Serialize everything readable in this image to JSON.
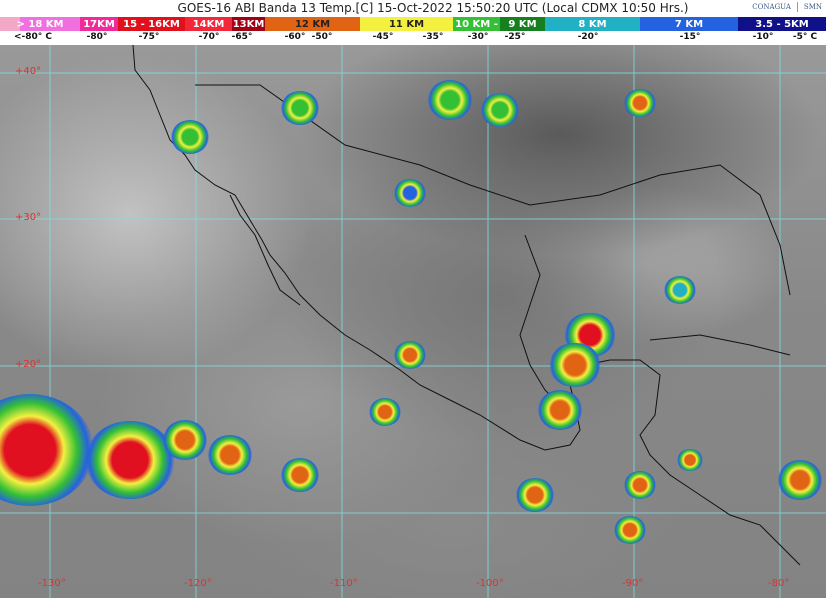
{
  "title": "GOES-16 ABI Banda 13 Temp.[C] 15-Oct-2022 15:50:20 UTC (Local CDMX  10:50 Hrs.)",
  "logos": [
    "CONAGUA",
    "SMN"
  ],
  "legend": {
    "segments": [
      {
        "label": "> 18 KM",
        "color": "#f070e0"
      },
      {
        "label": "17KM",
        "color": "#f02a9a"
      },
      {
        "label": "15 - 16KM",
        "color": "#e0101c"
      },
      {
        "label": "14KM",
        "color": "#f2283a"
      },
      {
        "label": "13KM",
        "color": "#a00014"
      },
      {
        "label": "12 KM",
        "color": "#e06414"
      },
      {
        "label": "11 KM",
        "color": "#f4f040"
      },
      {
        "label": "10 KM -",
        "color": "#34c034"
      },
      {
        "label": "9 KM",
        "color": "#168020"
      },
      {
        "label": "8 KM",
        "color": "#22b0c4"
      },
      {
        "label": "7 KM",
        "color": "#2462e0"
      },
      {
        "label": "3.5 - 5KM",
        "color": "#101088"
      }
    ],
    "temps": [
      "<-80° C",
      "-80°",
      "-75°",
      "-70°",
      "-65°",
      "-60°",
      "-50°",
      "-45°",
      "-35°",
      "-30°",
      "-25°",
      "-20°",
      "-15°",
      "-10°",
      "-5° C"
    ]
  },
  "map": {
    "latitudes": [
      "+40°",
      "+30°",
      "+20°"
    ],
    "longitudes": [
      "-130°",
      "-120°",
      "-110°",
      "-100°",
      "-90°",
      "-80°"
    ],
    "grid_color": "#7fe0e0",
    "label_color": "#e03030"
  }
}
